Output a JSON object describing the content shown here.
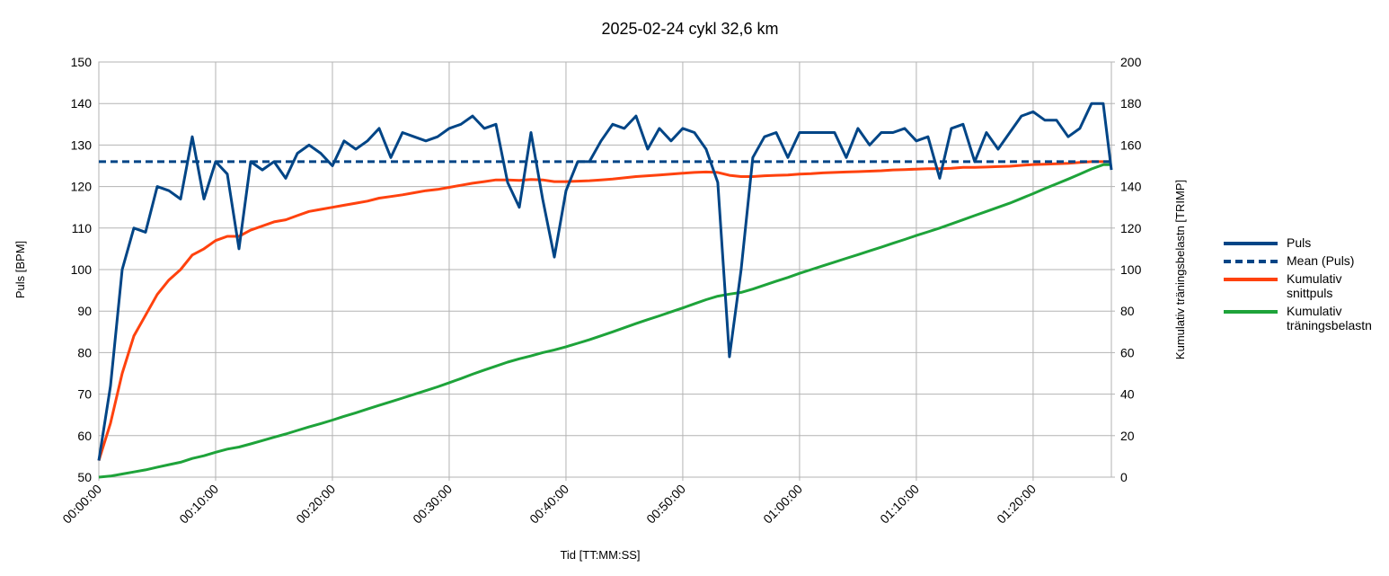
{
  "chart_data": {
    "type": "line",
    "title": "2025-02-24 cykl 32,6 km",
    "xlabel": "Tid [TT:MM:SS]",
    "ylabel": "Puls [BPM]",
    "y2label": "Kumulativ träningsbelastn [TRIMP]",
    "x": [
      0,
      1,
      2,
      3,
      4,
      5,
      6,
      7,
      8,
      9,
      10,
      11,
      12,
      13,
      14,
      15,
      16,
      17,
      18,
      19,
      20,
      21,
      22,
      23,
      24,
      25,
      26,
      27,
      28,
      29,
      30,
      31,
      32,
      33,
      34,
      35,
      36,
      37,
      38,
      39,
      40,
      41,
      42,
      43,
      44,
      45,
      46,
      47,
      48,
      49,
      50,
      51,
      52,
      53,
      54,
      55,
      56,
      57,
      58,
      59,
      60,
      61,
      62,
      63,
      64,
      65,
      66,
      67,
      68,
      69,
      70,
      71,
      72,
      73,
      74,
      75,
      76,
      77,
      78,
      79,
      80,
      81,
      82,
      83,
      84,
      85,
      86,
      86.7
    ],
    "xlim": [
      0,
      86.7
    ],
    "xticks": [
      {
        "value": 0,
        "label": "00:00:00"
      },
      {
        "value": 10,
        "label": "00:10:00"
      },
      {
        "value": 20,
        "label": "00:20:00"
      },
      {
        "value": 30,
        "label": "00:30:00"
      },
      {
        "value": 40,
        "label": "00:40:00"
      },
      {
        "value": 50,
        "label": "00:50:00"
      },
      {
        "value": 60,
        "label": "01:00:00"
      },
      {
        "value": 70,
        "label": "01:10:00"
      },
      {
        "value": 80,
        "label": "01:20:00"
      }
    ],
    "ylim": [
      50,
      150
    ],
    "yticks": [
      50,
      60,
      70,
      80,
      90,
      100,
      110,
      120,
      130,
      140,
      150
    ],
    "y2lim": [
      0,
      200
    ],
    "y2ticks": [
      0,
      20,
      40,
      60,
      80,
      100,
      120,
      140,
      160,
      180,
      200
    ],
    "grid": true,
    "legend": "right",
    "series": [
      {
        "name": "Puls",
        "color": "#004586",
        "values": [
          54,
          72,
          100,
          110,
          109,
          120,
          119,
          117,
          132,
          117,
          126,
          123,
          105,
          126,
          124,
          126,
          122,
          128,
          130,
          128,
          125,
          131,
          129,
          131,
          134,
          127,
          133,
          132,
          131,
          132,
          134,
          135,
          137,
          134,
          135,
          121,
          115,
          133,
          117,
          103,
          119,
          126,
          126,
          131,
          135,
          134,
          137,
          129,
          134,
          131,
          134,
          133,
          129,
          121,
          79,
          100,
          127,
          132,
          133,
          127,
          133,
          133,
          133,
          133,
          127,
          134,
          130,
          133,
          133,
          134,
          131,
          132,
          122,
          134,
          135,
          126,
          133,
          129,
          133,
          137,
          138,
          136,
          136,
          132,
          134,
          140,
          140,
          124
        ]
      },
      {
        "name": "Mean (Puls)",
        "color": "#004586",
        "dash": true,
        "values": [
          126,
          126,
          126,
          126,
          126,
          126,
          126,
          126,
          126,
          126,
          126,
          126,
          126,
          126,
          126,
          126,
          126,
          126,
          126,
          126,
          126,
          126,
          126,
          126,
          126,
          126,
          126,
          126,
          126,
          126,
          126,
          126,
          126,
          126,
          126,
          126,
          126,
          126,
          126,
          126,
          126,
          126,
          126,
          126,
          126,
          126,
          126,
          126,
          126,
          126,
          126,
          126,
          126,
          126,
          126,
          126,
          126,
          126,
          126,
          126,
          126,
          126,
          126,
          126,
          126,
          126,
          126,
          126,
          126,
          126,
          126,
          126,
          126,
          126,
          126,
          126,
          126,
          126,
          126,
          126,
          126,
          126,
          126,
          126,
          126,
          126,
          126,
          126
        ]
      },
      {
        "name": "Kumulativ snittpuls",
        "color": "#ff420e",
        "values": [
          54,
          63,
          75,
          84,
          89,
          94,
          97.5,
          100,
          103.5,
          105,
          107,
          108,
          108,
          109.5,
          110.5,
          111.5,
          112,
          113,
          114,
          114.5,
          115,
          115.5,
          116,
          116.5,
          117.2,
          117.6,
          118,
          118.5,
          119,
          119.3,
          119.8,
          120.3,
          120.8,
          121.2,
          121.6,
          121.6,
          121.5,
          121.7,
          121.6,
          121.2,
          121.2,
          121.3,
          121.4,
          121.6,
          121.8,
          122.1,
          122.4,
          122.6,
          122.8,
          123,
          123.2,
          123.4,
          123.5,
          123.4,
          122.7,
          122.4,
          122.4,
          122.6,
          122.7,
          122.8,
          123,
          123.1,
          123.3,
          123.4,
          123.5,
          123.6,
          123.7,
          123.8,
          124,
          124.1,
          124.2,
          124.3,
          124.3,
          124.4,
          124.6,
          124.6,
          124.7,
          124.8,
          124.9,
          125.1,
          125.3,
          125.4,
          125.5,
          125.6,
          125.8,
          126,
          126,
          126
        ]
      },
      {
        "name": "Kumulativ träningsbelastn",
        "color": "#1ea33a",
        "axis": "y2",
        "values": [
          0,
          0.5,
          1.5,
          2.5,
          3.5,
          4.8,
          6,
          7.2,
          9,
          10.3,
          12,
          13.5,
          14.5,
          16,
          17.6,
          19.2,
          20.8,
          22.5,
          24.2,
          25.8,
          27.5,
          29.3,
          31,
          32.8,
          34.6,
          36.3,
          38.1,
          39.9,
          41.7,
          43.5,
          45.5,
          47.5,
          49.6,
          51.6,
          53.5,
          55.4,
          57,
          58.4,
          60,
          61.3,
          62.8,
          64.5,
          66.2,
          68.1,
          70,
          72,
          74,
          75.9,
          77.7,
          79.6,
          81.5,
          83.5,
          85.5,
          87.2,
          88.2,
          89,
          90.6,
          92.5,
          94.4,
          96.2,
          98.2,
          100,
          101.8,
          103.6,
          105.4,
          107.2,
          109,
          110.8,
          112.7,
          114.5,
          116.4,
          118.2,
          120,
          122,
          124,
          126,
          128,
          130,
          132,
          134.3,
          136.6,
          139,
          141.3,
          143.6,
          146,
          148.5,
          150.5,
          150.5
        ]
      }
    ]
  }
}
